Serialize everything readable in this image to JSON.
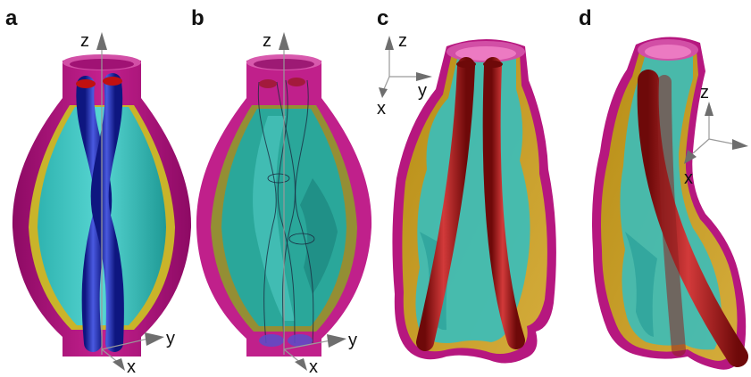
{
  "panels": [
    {
      "id": "a",
      "label": "a",
      "axes": [
        "z",
        "y",
        "x"
      ]
    },
    {
      "id": "b",
      "label": "b",
      "axes": [
        "z",
        "y",
        "x"
      ]
    },
    {
      "id": "c",
      "label": "c",
      "axes": [
        "z",
        "y",
        "x"
      ]
    },
    {
      "id": "d",
      "label": "d",
      "axes": [
        "z",
        "x"
      ]
    }
  ],
  "colors": {
    "outer_wall": "#b0127f",
    "wall_edge": "#e06ab8",
    "thrombus_layer": "#c9b42a",
    "lumen": "#3fc7c4",
    "lumen_dark": "#1f9a96",
    "graft_blue": "#1d2aa8",
    "graft_blue_light": "#4a5ae0",
    "graft_red": "#a81616",
    "graft_red_light": "#d23a3a",
    "axis_cone": "#6e6e6e"
  },
  "icons": [
    "axis-arrow-icon"
  ]
}
